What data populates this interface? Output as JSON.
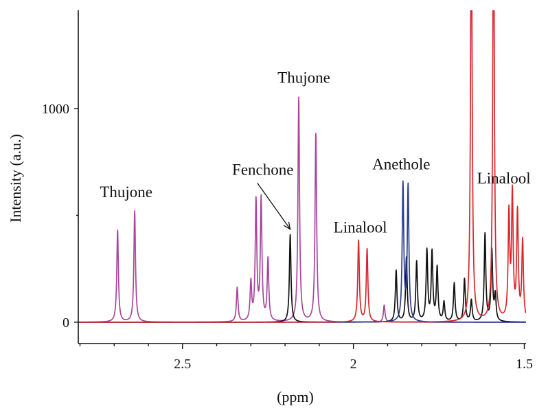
{
  "chart_data": {
    "type": "line",
    "title": "",
    "xlabel": "(ppm)",
    "ylabel": "Intensity (a.u.)",
    "xlim": [
      2.805,
      1.495
    ],
    "ylim": [
      -100,
      1460
    ],
    "x_reversed": true,
    "x_ticks": [
      2.5,
      2,
      1.5
    ],
    "x_tick_labels": [
      "2.5",
      "2",
      "1.5"
    ],
    "y_ticks": [
      0,
      1000
    ],
    "y_tick_labels": [
      "0",
      "1000"
    ],
    "grid": false,
    "legend": "none",
    "series": [
      {
        "color": "#a8469c",
        "peaks": [
          {
            "x": 2.69,
            "y": 430
          },
          {
            "x": 2.64,
            "y": 520
          },
          {
            "x": 2.34,
            "y": 160
          },
          {
            "x": 2.3,
            "y": 180
          },
          {
            "x": 2.285,
            "y": 560
          },
          {
            "x": 2.27,
            "y": 570
          },
          {
            "x": 2.25,
            "y": 290
          },
          {
            "x": 2.16,
            "y": 1050
          },
          {
            "x": 2.11,
            "y": 880
          },
          {
            "x": 1.91,
            "y": 80
          }
        ]
      },
      {
        "color": "#111111",
        "peaks": [
          {
            "x": 2.185,
            "y": 410
          },
          {
            "x": 1.875,
            "y": 240
          },
          {
            "x": 1.845,
            "y": 300
          },
          {
            "x": 1.815,
            "y": 280
          },
          {
            "x": 1.785,
            "y": 330
          },
          {
            "x": 1.77,
            "y": 320
          },
          {
            "x": 1.755,
            "y": 250
          },
          {
            "x": 1.735,
            "y": 90
          },
          {
            "x": 1.705,
            "y": 180
          },
          {
            "x": 1.675,
            "y": 200
          },
          {
            "x": 1.655,
            "y": 100
          },
          {
            "x": 1.615,
            "y": 410
          },
          {
            "x": 1.595,
            "y": 330
          },
          {
            "x": 1.585,
            "y": 120
          }
        ]
      },
      {
        "color": "#2b3d8f",
        "peaks": [
          {
            "x": 1.855,
            "y": 640
          },
          {
            "x": 1.84,
            "y": 630
          }
        ]
      },
      {
        "color": "#d9262b",
        "peaks": [
          {
            "x": 1.985,
            "y": 380
          },
          {
            "x": 1.96,
            "y": 340
          },
          {
            "x": 1.655,
            "y": 2000
          },
          {
            "x": 1.59,
            "y": 2000
          },
          {
            "x": 1.545,
            "y": 490
          },
          {
            "x": 1.535,
            "y": 580
          },
          {
            "x": 1.52,
            "y": 500
          },
          {
            "x": 1.505,
            "y": 370
          }
        ]
      }
    ],
    "annotations": [
      {
        "text": "Thujone",
        "x": 2.665,
        "y": 585
      },
      {
        "text": "Fenchone",
        "x": 2.265,
        "y": 690,
        "arrow_to": {
          "x": 2.185,
          "y": 435
        }
      },
      {
        "text": "Thujone",
        "x": 2.145,
        "y": 1120
      },
      {
        "text": "Linalool",
        "x": 1.98,
        "y": 420
      },
      {
        "text": "Anethole",
        "x": 1.86,
        "y": 715
      },
      {
        "text": "Linalool",
        "x": 1.56,
        "y": 650
      }
    ]
  }
}
